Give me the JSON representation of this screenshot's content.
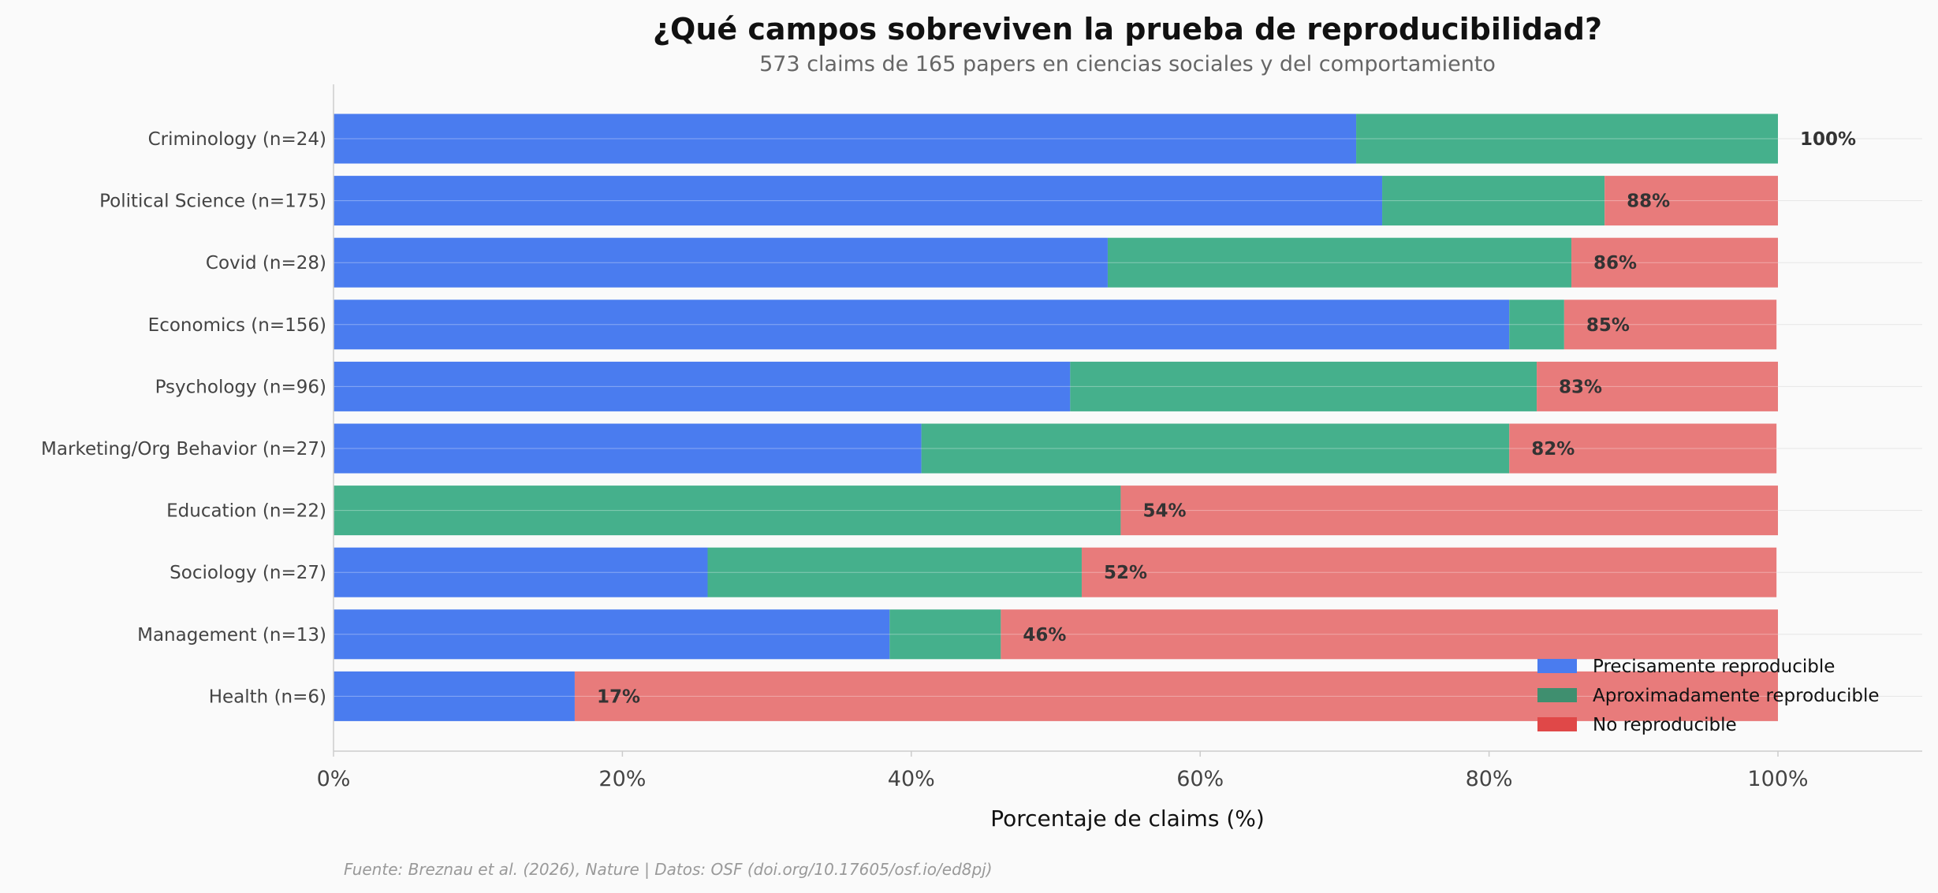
{
  "chart_data": {
    "type": "bar",
    "orientation": "horizontal",
    "stacked": true,
    "title": "¿Qué campos sobreviven la prueba de reproducibilidad?",
    "subtitle": "573 claims de 165 papers en ciencias sociales y del comportamiento",
    "xlabel": "Porcentaje de claims (%)",
    "ylabel": "",
    "xlim": [
      0,
      110
    ],
    "xticks": [
      0,
      20,
      40,
      60,
      80,
      100
    ],
    "xtick_labels": [
      "0%",
      "20%",
      "40%",
      "60%",
      "80%",
      "100%"
    ],
    "grid": "horizontal, faint",
    "legend_position": "bottom-right",
    "categories": [
      "Criminology (n=24)",
      "Political Science (n=175)",
      "Covid (n=28)",
      "Economics (n=156)",
      "Psychology (n=96)",
      "Marketing/Org Behavior (n=27)",
      "Education (n=22)",
      "Sociology (n=27)",
      "Management (n=13)",
      "Health (n=6)"
    ],
    "series": [
      {
        "name": "Precisamente reproducible",
        "color": "#4a7cef",
        "values": [
          70.8,
          72.6,
          53.6,
          81.4,
          51.0,
          40.7,
          0.0,
          25.9,
          38.5,
          16.7
        ]
      },
      {
        "name": "Aproximadamente reproducible",
        "color": "#45b08c",
        "values": [
          29.2,
          15.4,
          32.1,
          3.8,
          32.3,
          40.7,
          54.5,
          25.9,
          7.7,
          0.0
        ]
      },
      {
        "name": "No reproducible",
        "color": "#e87b7b",
        "values": [
          0.0,
          12.0,
          14.3,
          14.7,
          16.7,
          18.5,
          45.5,
          48.1,
          53.8,
          83.3
        ]
      }
    ],
    "legend_swatch_colors": [
      "#4a7cef",
      "#3f8f6f",
      "#e04848"
    ],
    "data_labels": [
      "100%",
      "88%",
      "86%",
      "85%",
      "83%",
      "82%",
      "54%",
      "52%",
      "46%",
      "17%"
    ],
    "source": "Fuente: Breznau et al. (2026), Nature | Datos: OSF (doi.org/10.17605/osf.io/ed8pj)"
  }
}
